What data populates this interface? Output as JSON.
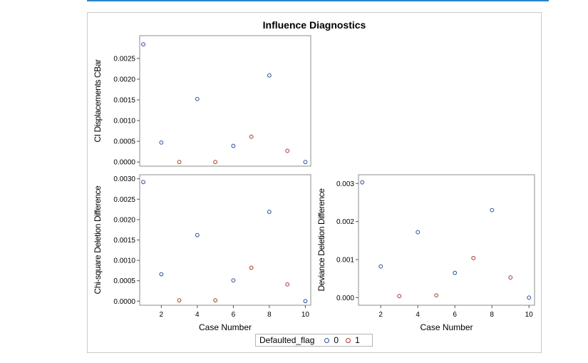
{
  "chart_data": {
    "type": "scatter",
    "title": "Influence Diagnostics",
    "colors": {
      "0": "#2d4c9a",
      "1": "#a83a2e"
    },
    "legend": {
      "title": "Defaulted_flag",
      "entries": [
        "0",
        "1"
      ],
      "placement": "bottom"
    },
    "panels": [
      {
        "id": "cbar",
        "ylabel": "CI Displacements CBar",
        "xlabel": "",
        "xlim": [
          0.8,
          10.3
        ],
        "ylim": [
          -0.0001,
          0.00305
        ],
        "yticks": [
          "0.0000",
          "0.0005",
          "0.0010",
          "0.0015",
          "0.0020",
          "0.0025"
        ],
        "xticks": [],
        "points": [
          {
            "x": 1,
            "y": 0.00284,
            "group": "0"
          },
          {
            "x": 2,
            "y": 0.00047,
            "group": "0"
          },
          {
            "x": 3,
            "y": 0.0,
            "group": "1"
          },
          {
            "x": 4,
            "y": 0.00152,
            "group": "0"
          },
          {
            "x": 5,
            "y": 0.0,
            "group": "1"
          },
          {
            "x": 6,
            "y": 0.00039,
            "group": "0"
          },
          {
            "x": 7,
            "y": 0.00061,
            "group": "1"
          },
          {
            "x": 8,
            "y": 0.00209,
            "group": "0"
          },
          {
            "x": 9,
            "y": 0.00027,
            "group": "1"
          },
          {
            "x": 10,
            "y": 0.0,
            "group": "0"
          }
        ]
      },
      {
        "id": "chisq",
        "ylabel": "Chi-square Deletion Difference",
        "xlabel": "Case Number",
        "xlim": [
          0.8,
          10.3
        ],
        "ylim": [
          -0.0001,
          0.0031
        ],
        "yticks": [
          "0.0000",
          "0.0005",
          "0.0010",
          "0.0015",
          "0.0020",
          "0.0025",
          "0.0030"
        ],
        "xticks": [
          "2",
          "4",
          "6",
          "8",
          "10"
        ],
        "points": [
          {
            "x": 1,
            "y": 0.00292,
            "group": "0"
          },
          {
            "x": 2,
            "y": 0.00066,
            "group": "0"
          },
          {
            "x": 3,
            "y": 2e-05,
            "group": "1"
          },
          {
            "x": 4,
            "y": 0.00162,
            "group": "0"
          },
          {
            "x": 5,
            "y": 2e-05,
            "group": "1"
          },
          {
            "x": 6,
            "y": 0.00051,
            "group": "0"
          },
          {
            "x": 7,
            "y": 0.00082,
            "group": "1"
          },
          {
            "x": 8,
            "y": 0.00219,
            "group": "0"
          },
          {
            "x": 9,
            "y": 0.00041,
            "group": "1"
          },
          {
            "x": 10,
            "y": 0.0,
            "group": "0"
          }
        ]
      },
      {
        "id": "deviance",
        "ylabel": "Deviance Deletion Difference",
        "xlabel": "Case Number",
        "xlim": [
          0.8,
          10.3
        ],
        "ylim": [
          -0.0002,
          0.00323
        ],
        "yticks": [
          "0.000",
          "0.001",
          "0.002",
          "0.003"
        ],
        "xticks": [
          "2",
          "4",
          "6",
          "8",
          "10"
        ],
        "points": [
          {
            "x": 1,
            "y": 0.00303,
            "group": "0"
          },
          {
            "x": 2,
            "y": 0.00082,
            "group": "0"
          },
          {
            "x": 3,
            "y": 4e-05,
            "group": "1"
          },
          {
            "x": 4,
            "y": 0.00172,
            "group": "0"
          },
          {
            "x": 5,
            "y": 6e-05,
            "group": "1"
          },
          {
            "x": 6,
            "y": 0.00065,
            "group": "0"
          },
          {
            "x": 7,
            "y": 0.00104,
            "group": "1"
          },
          {
            "x": 8,
            "y": 0.0023,
            "group": "0"
          },
          {
            "x": 9,
            "y": 0.00053,
            "group": "1"
          },
          {
            "x": 10,
            "y": 0.0,
            "group": "0"
          }
        ]
      }
    ]
  }
}
